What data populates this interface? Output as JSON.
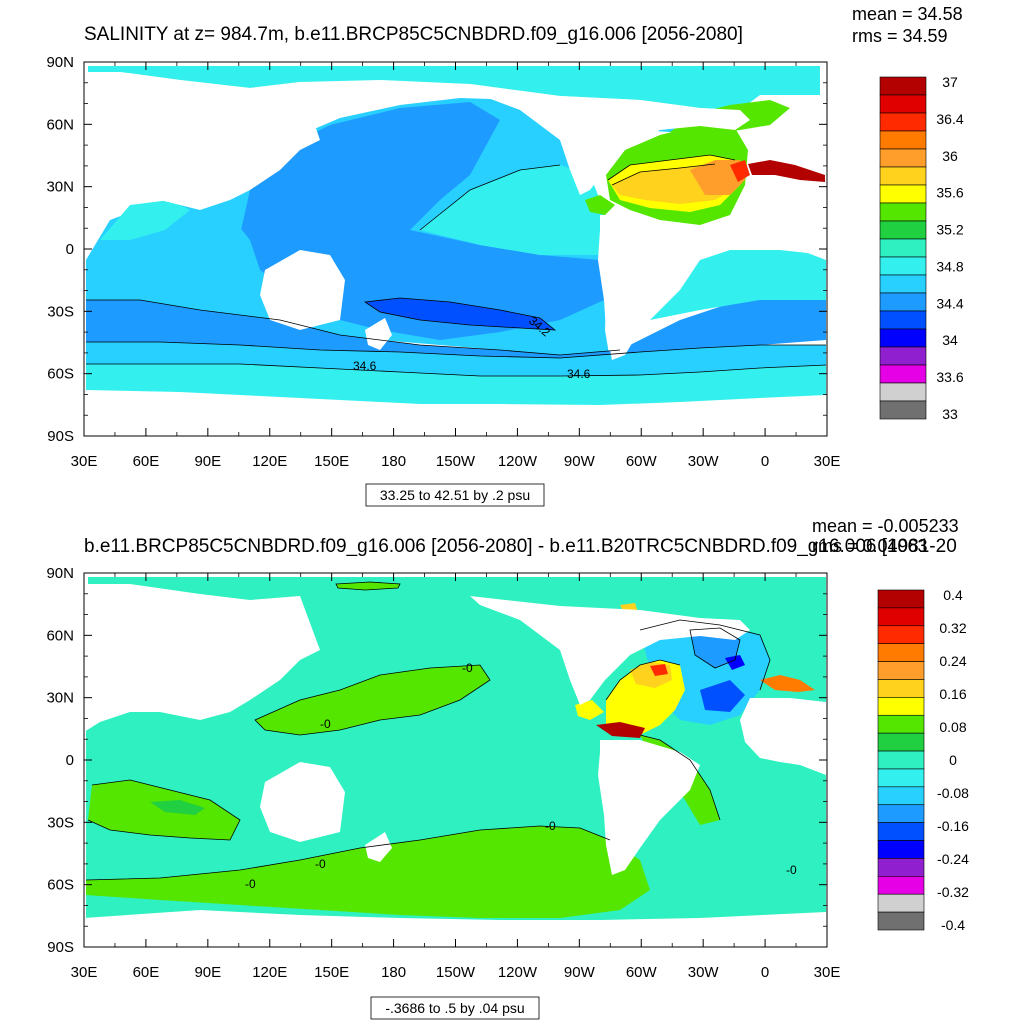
{
  "panels": [
    {
      "id": "top",
      "title": "SALINITY at z= 984.7m, b.e11.BRCP85C5CNBDRD.f09_g16.006 [2056-2080]",
      "stats": {
        "mean": "mean = 34.58",
        "rms": "rms = 34.59"
      },
      "lat_ticks": [
        "90N",
        "60N",
        "30N",
        "0",
        "30S",
        "60S",
        "90S"
      ],
      "lon_ticks": [
        "30E",
        "60E",
        "90E",
        "120E",
        "150E",
        "180",
        "150W",
        "120W",
        "90W",
        "60W",
        "30W",
        "0",
        "30E"
      ],
      "range_label": "33.25 to 42.51 by .2 psu",
      "contour_labels": [
        "34.2",
        "34.6",
        "34.6"
      ],
      "colorbar": {
        "colors": [
          "#b30000",
          "#e00000",
          "#ff2a00",
          "#ff7b00",
          "#ff9e2a",
          "#ffd21e",
          "#ffff00",
          "#55e600",
          "#20d040",
          "#2ef0c0",
          "#33f0ee",
          "#28d0ff",
          "#1e9bff",
          "#0050ff",
          "#0000ff",
          "#8f1fcf",
          "#e600e6",
          "#d0d0d0",
          "#707070"
        ],
        "labels": [
          "37",
          "36.4",
          "36",
          "35.6",
          "35.2",
          "34.8",
          "34.4",
          "34",
          "33.6",
          "33"
        ]
      }
    },
    {
      "id": "bottom",
      "title": "b.e11.BRCP85C5CNBDRD.f09_g16.006 [2056-2080] - b.e11.B20TRC5CNBDRD.f09_g16.006 [1981-20",
      "stats": {
        "mean": "mean = -0.005233",
        "rms": "rms = 0.04063"
      },
      "lat_ticks": [
        "90N",
        "60N",
        "30N",
        "0",
        "30S",
        "60S",
        "90S"
      ],
      "lon_ticks": [
        "30E",
        "60E",
        "90E",
        "120E",
        "150E",
        "180",
        "150W",
        "120W",
        "90W",
        "60W",
        "30W",
        "0",
        "30E"
      ],
      "range_label": "-.3686 to .5 by .04 psu",
      "contour_labels": [
        "-0",
        "-0",
        "-0",
        "-0",
        "-0",
        "-0"
      ],
      "colorbar": {
        "colors": [
          "#b30000",
          "#e00000",
          "#ff2a00",
          "#ff7b00",
          "#ff9e2a",
          "#ffd21e",
          "#ffff00",
          "#55e600",
          "#20d040",
          "#2ef0c0",
          "#33f0ee",
          "#28d0ff",
          "#1e9bff",
          "#0050ff",
          "#0000ff",
          "#8f1fcf",
          "#e600e6",
          "#d0d0d0",
          "#707070"
        ],
        "labels": [
          "0.4",
          "0.32",
          "0.24",
          "0.16",
          "0.08",
          "0",
          "-0.08",
          "-0.16",
          "-0.24",
          "-0.32",
          "-0.4"
        ]
      }
    }
  ]
}
